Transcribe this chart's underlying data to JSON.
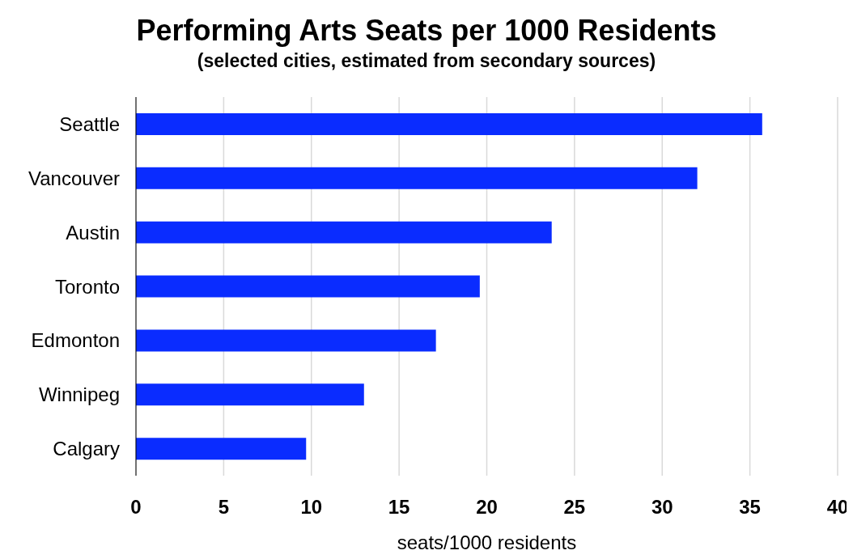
{
  "chart_data": {
    "type": "bar",
    "orientation": "horizontal",
    "title": "Performing Arts Seats per 1000 Residents",
    "subtitle": "(selected cities, estimated from secondary sources)",
    "xlabel": "seats/1000 residents",
    "categories": [
      "Seattle",
      "Vancouver",
      "Austin",
      "Toronto",
      "Edmonton",
      "Winnipeg",
      "Calgary"
    ],
    "values": [
      35.7,
      32.0,
      23.7,
      19.6,
      17.1,
      13.0,
      9.7
    ],
    "color": "#0a2cff",
    "xlim": [
      0,
      40
    ],
    "xticks": [
      0,
      5,
      10,
      15,
      20,
      25,
      30,
      35,
      40
    ],
    "grid": "x",
    "legend": false
  }
}
